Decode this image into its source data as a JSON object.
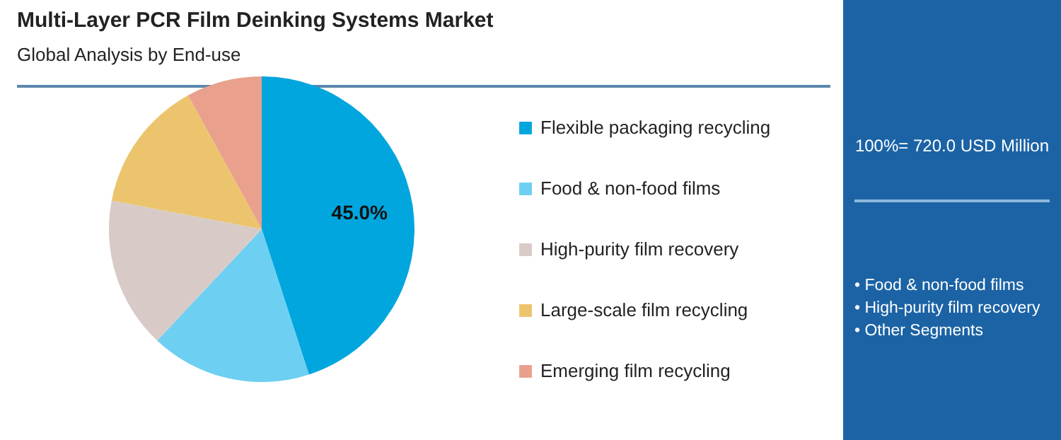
{
  "chart_data": {
    "type": "pie",
    "title": "Multi-Layer PCR Film Deinking Systems Market",
    "subtitle": "Global Analysis by End-use",
    "categories": [
      "Flexible packaging recycling",
      "Food & non-food films",
      "High-purity film recovery",
      "Large-scale film recycling",
      "Emerging film recycling"
    ],
    "values": [
      45,
      17,
      16,
      14,
      8
    ],
    "colors": [
      "#00a6dd",
      "#6dcff2",
      "#d8cbc7",
      "#ecc46e",
      "#e9a08c"
    ],
    "value_labels": [
      "45.0%",
      null,
      null,
      null,
      null
    ],
    "legend": "right",
    "annotations": [
      "100%= 720.0 USD Million",
      "• Food & non-food films",
      "• High-purity film recovery",
      "• Other Segments"
    ]
  }
}
